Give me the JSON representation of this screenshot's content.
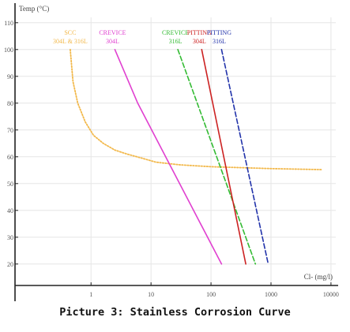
{
  "caption": "Picture 3: Stainless Corrosion Curve",
  "chart_data": {
    "type": "line",
    "title": "",
    "ylabel": "Temp (°C)",
    "xlabel": "Cl- (mg/l)",
    "x_scale": "log",
    "xlim": [
      0.1,
      10000
    ],
    "ylim": [
      12,
      112
    ],
    "grid": true,
    "x_ticks": [
      {
        "value": 1,
        "label": "1"
      },
      {
        "value": 10,
        "label": "10"
      },
      {
        "value": 100,
        "label": "100"
      },
      {
        "value": 1000,
        "label": "1000"
      },
      {
        "value": 10000,
        "label": "10000"
      }
    ],
    "y_ticks": [
      {
        "value": 20,
        "label": "20"
      },
      {
        "value": 30,
        "label": "30"
      },
      {
        "value": 40,
        "label": "40"
      },
      {
        "value": 50,
        "label": "50"
      },
      {
        "value": 60,
        "label": "60"
      },
      {
        "value": 70,
        "label": "70"
      },
      {
        "value": 80,
        "label": "80"
      },
      {
        "value": 90,
        "label": "90"
      },
      {
        "value": 100,
        "label": "100"
      },
      {
        "value": 110,
        "label": "110"
      }
    ],
    "series": [
      {
        "name": "SCC 304L & 316L",
        "label_lines": [
          "SCC",
          "304L & 316L"
        ],
        "color": "#f2b84a",
        "style": "dotted",
        "points": [
          [
            0.45,
            100
          ],
          [
            0.5,
            88
          ],
          [
            0.6,
            80
          ],
          [
            0.8,
            73
          ],
          [
            1.1,
            68
          ],
          [
            1.6,
            65
          ],
          [
            2.5,
            62.5
          ],
          [
            4,
            61
          ],
          [
            7,
            59.5
          ],
          [
            12,
            58
          ],
          [
            30,
            57
          ],
          [
            100,
            56.3
          ],
          [
            1000,
            55.6
          ],
          [
            7000,
            55.2
          ]
        ]
      },
      {
        "name": "CREVICE 304L",
        "label_lines": [
          "CREVICE",
          "304L"
        ],
        "color": "#e040d0",
        "style": "solid",
        "points": [
          [
            2.5,
            100
          ],
          [
            6,
            80
          ],
          [
            150,
            20
          ]
        ]
      },
      {
        "name": "CREVICE 316L",
        "label_lines": [
          "CREVICE",
          "316L"
        ],
        "color": "#33bb33",
        "style": "dashed",
        "points": [
          [
            28,
            100
          ],
          [
            550,
            20
          ]
        ]
      },
      {
        "name": "PITTING 304L",
        "label_lines": [
          "PITTING",
          "304L"
        ],
        "color": "#cc2222",
        "style": "solid",
        "points": [
          [
            70,
            100
          ],
          [
            380,
            20
          ]
        ]
      },
      {
        "name": "PITTING 316L",
        "label_lines": [
          "PITTING",
          "316L"
        ],
        "color": "#2233aa",
        "style": "dashed",
        "points": [
          [
            150,
            100
          ],
          [
            900,
            20
          ]
        ]
      }
    ]
  }
}
